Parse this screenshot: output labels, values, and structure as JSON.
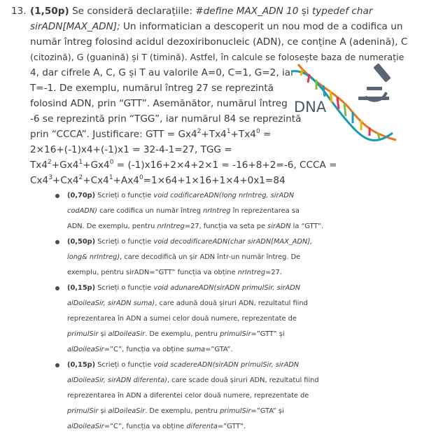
{
  "problem": {
    "number": "13.",
    "points": "(1,50p)",
    "intro_lines": [
      [
        {
          "t": "(1,50p)",
          "s": "b"
        },
        {
          "t": " Se consideră declarațiile: "
        },
        {
          "t": "#define MAX_ADN 10",
          "s": "i"
        },
        {
          "t": " și "
        },
        {
          "t": "typedef char",
          "s": "i"
        }
      ],
      [
        {
          "t": "sirADN[MAX_ADN];",
          "s": "i"
        },
        {
          "t": " Un informatician a descoperit un nou mod de a codifica un"
        }
      ],
      [
        {
          "t": "număr întreg folosind acidul dezoxiribonucleic (ADN), ce conține A (adenină), C"
        }
      ],
      [
        {
          "t": "(citozină), G (guanină) și T (timină). Astfel, în calcule se folosește baza de numerație"
        }
      ],
      [
        {
          "t": "4, dar cifrele A, C, G și T au valorile A=0, C=1, G=2, iar"
        }
      ],
      [
        {
          "t": "T=-1. De exemplu, numărul întreg 27 se reprezintă"
        }
      ],
      [
        {
          "t": "folosind ADN, prin “GTT”. Asemănător, numărul întreg"
        }
      ],
      [
        {
          "t": "-6 se reprezintă prin “TGG”, iar numărul 84 se reprezintă"
        }
      ],
      [
        {
          "t": "prin “CCCA”. Justificare: GTT = Gx4"
        },
        {
          "t": "2",
          "s": "sup"
        },
        {
          "t": "+Tx4"
        },
        {
          "t": "1",
          "s": "sup"
        },
        {
          "t": "+Tx4"
        },
        {
          "t": "0",
          "s": "sup"
        },
        {
          "t": " ="
        }
      ],
      [
        {
          "t": "2×16+(-1)x4+(-1)x1 = 32-4-1=27, TGG ="
        }
      ],
      [
        {
          "t": "Tx4"
        },
        {
          "t": "2",
          "s": "sup"
        },
        {
          "t": "+Gx4"
        },
        {
          "t": "1",
          "s": "sup"
        },
        {
          "t": "+Gx4"
        },
        {
          "t": "0",
          "s": "sup"
        },
        {
          "t": " = (-1)x16+2×4+2×1 = -16+8+2=-6, CCCA ="
        }
      ],
      [
        {
          "t": "Cx4"
        },
        {
          "t": "3",
          "s": "sup"
        },
        {
          "t": "+Cx4"
        },
        {
          "t": "2",
          "s": "sup"
        },
        {
          "t": "+Cx4"
        },
        {
          "t": "1",
          "s": "sup"
        },
        {
          "t": "+Ax4"
        },
        {
          "t": "0",
          "s": "sup"
        },
        {
          "t": "=1×64+1×16+1×4+0x1=84"
        }
      ]
    ]
  },
  "figure": {
    "label": "DNA"
  },
  "tasks": [
    {
      "lines": [
        [
          {
            "t": "(0,70p)",
            "s": "b"
          },
          {
            "t": " Scrieți o funcție "
          },
          {
            "t": "void codificareADN(long nrIntreg, sirADN",
            "s": "i"
          }
        ],
        [
          {
            "t": "codADN)",
            "s": "i"
          },
          {
            "t": " care codifica un număr întreg "
          },
          {
            "t": "nrIntreg",
            "s": "i"
          },
          {
            "t": " în reprezentarea sa"
          }
        ],
        [
          {
            "t": "ADN. De exemplu, pentru "
          },
          {
            "t": "nrIntreg",
            "s": "i"
          },
          {
            "t": "=27, funcția va seta pe "
          },
          {
            "t": "sirADN",
            "s": "i"
          },
          {
            "t": " la “GTT”."
          }
        ]
      ]
    },
    {
      "lines": [
        [
          {
            "t": "(0,50p)",
            "s": "b"
          },
          {
            "t": " Scrieți o funcție "
          },
          {
            "t": "void decodificareADN(char sirADN[MAX_ADN],",
            "s": "i"
          }
        ],
        [
          {
            "t": "long& nrIntreg)",
            "s": "i"
          },
          {
            "t": ", care decodifică un șir ADN într-un număr întreg. De"
          }
        ],
        [
          {
            "t": "exemplu, pentru sirADN=”GTT” funcția va obține "
          },
          {
            "t": "nrIntreg",
            "s": "i"
          },
          {
            "t": "=27."
          }
        ]
      ]
    },
    {
      "lines": [
        [
          {
            "t": "(0,15p)",
            "s": "b"
          },
          {
            "t": " Scrieți o funcție "
          },
          {
            "t": "void adunareADN(sirADN primulSir, sirADN",
            "s": "i"
          }
        ],
        [
          {
            "t": "alDoileaSir, sirADN suma)",
            "s": "i"
          },
          {
            "t": ", care adună două șiruri ADN, rezultatul fiind"
          }
        ],
        [
          {
            "t": "reprezentarea în ADN a sumei celor două numere, reprezentate de"
          }
        ],
        [
          {
            "t": "primulSir",
            "s": "i"
          },
          {
            "t": " și "
          },
          {
            "t": "alDoileaSir",
            "s": "i"
          },
          {
            "t": ". De exemplu, pentru "
          },
          {
            "t": "primulSir",
            "s": "i"
          },
          {
            "t": "=”GTT” și"
          }
        ],
        [
          {
            "t": "alDoileaSir",
            "s": "i"
          },
          {
            "t": "=”C”, funcția va obține "
          },
          {
            "t": "suma",
            "s": "i"
          },
          {
            "t": "=”GTA”."
          }
        ]
      ]
    },
    {
      "lines": [
        [
          {
            "t": "(0,15p)",
            "s": "b"
          },
          {
            "t": " Scrieți o funcție "
          },
          {
            "t": "void scadereADN(sirADN primulSir, sirADN",
            "s": "i"
          }
        ],
        [
          {
            "t": "alDoileaSir, sirADN diferenta)",
            "s": "i"
          },
          {
            "t": ", care scade două șiruri ADN, rezultatul fiind"
          }
        ],
        [
          {
            "t": "reprezentarea în ADN a diferentei celor două numere, reprezentate de"
          }
        ],
        [
          {
            "t": "primulSir",
            "s": "i"
          },
          {
            "t": " și "
          },
          {
            "t": "alDoileaSir",
            "s": "i"
          },
          {
            "t": ". De exemplu, pentru "
          },
          {
            "t": "primulSir",
            "s": "i"
          },
          {
            "t": "=”GTA” și"
          }
        ],
        [
          {
            "t": "alDoileaSir",
            "s": "i"
          },
          {
            "t": "=”C”, funcția va obține "
          },
          {
            "t": "diferenta",
            "s": "i"
          },
          {
            "t": "=”GTT”."
          }
        ]
      ]
    }
  ],
  "colors": {
    "text": "#3a3a3a",
    "helix_orange": "#e8761e",
    "helix_teal": "#1c9bb0",
    "microscope": "#5a6472"
  }
}
